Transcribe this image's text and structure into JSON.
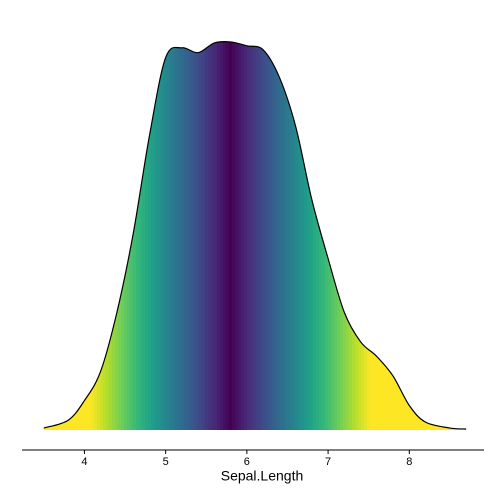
{
  "chart_data": {
    "type": "density",
    "x_label": "Sepal.Length",
    "x": [
      3.5,
      3.8,
      4.0,
      4.2,
      4.4,
      4.6,
      4.8,
      5.0,
      5.2,
      5.4,
      5.6,
      5.8,
      6.0,
      6.2,
      6.4,
      6.6,
      6.8,
      7.0,
      7.2,
      7.4,
      7.6,
      7.8,
      8.0,
      8.2,
      8.5,
      8.7
    ],
    "values": [
      0.002,
      0.01,
      0.03,
      0.06,
      0.12,
      0.2,
      0.3,
      0.38,
      0.39,
      0.385,
      0.395,
      0.396,
      0.392,
      0.388,
      0.36,
      0.31,
      0.235,
      0.175,
      0.12,
      0.09,
      0.075,
      0.055,
      0.025,
      0.008,
      0.002,
      0.001
    ],
    "xlim": [
      3.2314,
      8.9196
    ],
    "xticks": [
      4,
      5,
      6,
      7,
      8
    ],
    "ylim": [
      0,
      0.4
    ],
    "fill": "viridis",
    "line_color": "#000000"
  }
}
